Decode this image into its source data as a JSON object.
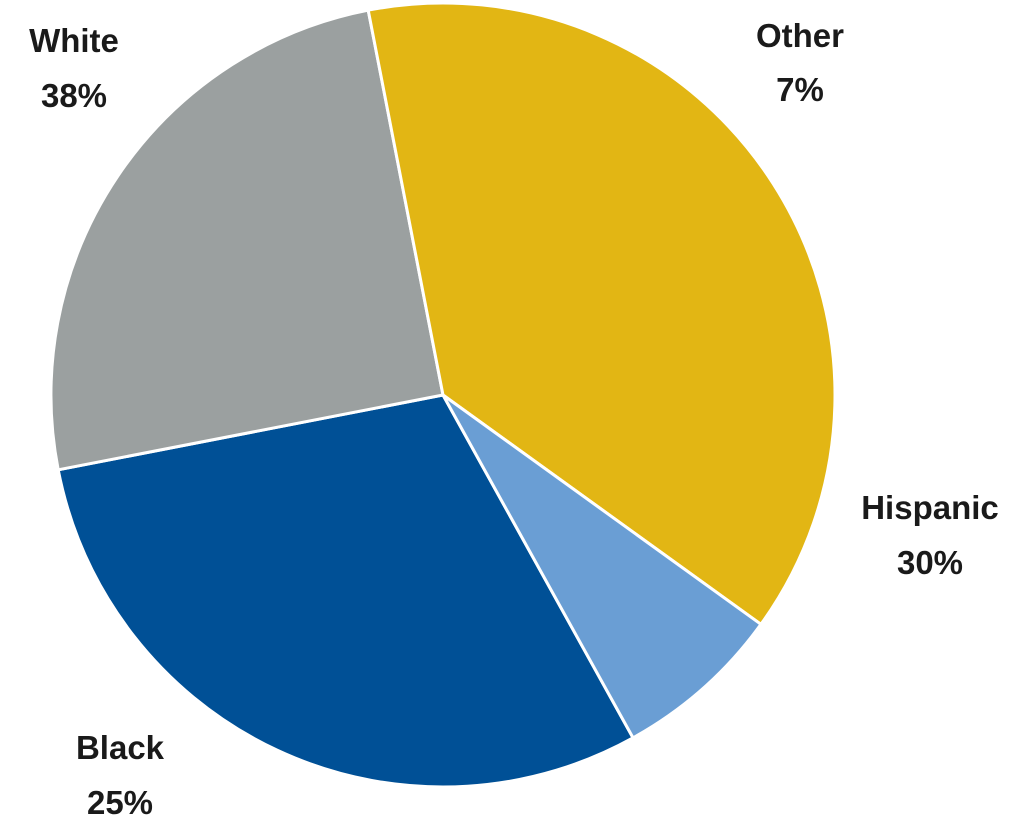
{
  "chart_data": {
    "type": "pie",
    "slices": [
      {
        "label": "Hispanic",
        "value": 30,
        "value_label": "30%",
        "color": "#005096"
      },
      {
        "label": "Black",
        "value": 25,
        "value_label": "25%",
        "color": "#9ba0a0"
      },
      {
        "label": "White",
        "value": 38,
        "value_label": "38%",
        "color": "#e2b614"
      },
      {
        "label": "Other",
        "value": 7,
        "value_label": "7%",
        "color": "#6a9ed4"
      }
    ],
    "start_angle_deg": 61,
    "direction": "clockwise",
    "slice_border_color": "#ffffff"
  }
}
